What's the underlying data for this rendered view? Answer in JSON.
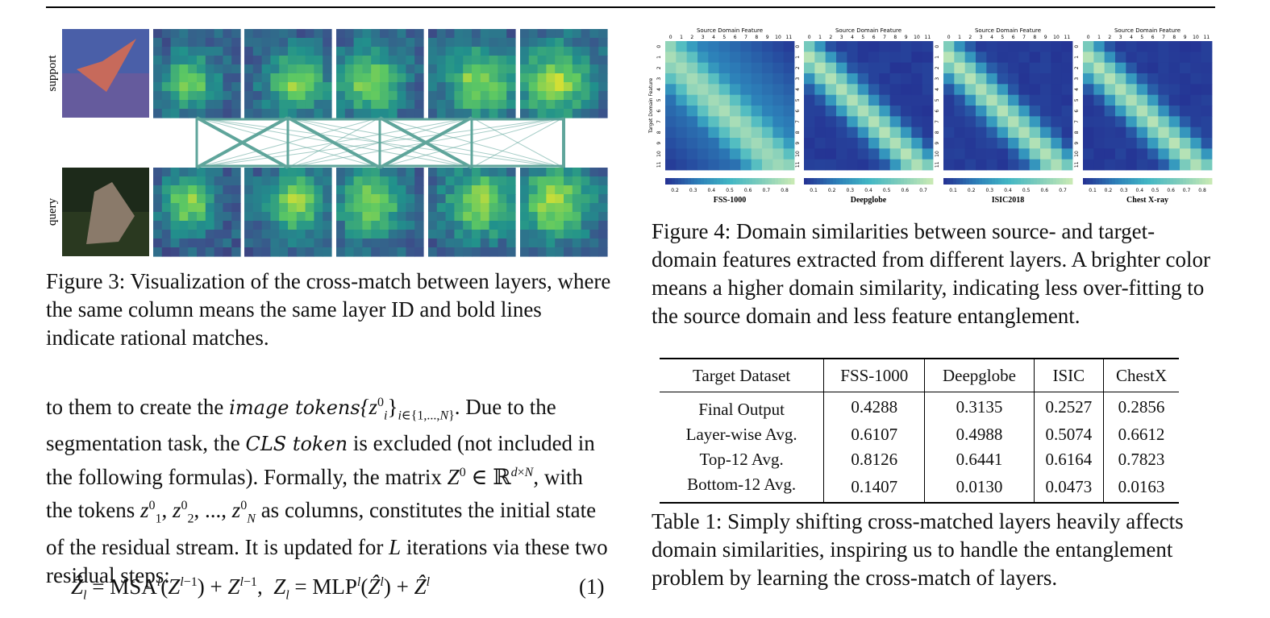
{
  "figure3": {
    "row_labels": [
      "support",
      "query"
    ],
    "caption": "Figure 3: Visualization of the cross-match between layers, where the same column means the same layer ID and bold lines indicate rational matches.",
    "line_color": "#5fa59b"
  },
  "figure4": {
    "axis_top_label": "Source Domain Feature",
    "axis_left_label": "Target Domain Feature",
    "tick_labels": [
      "0",
      "1",
      "2",
      "3",
      "4",
      "5",
      "6",
      "7",
      "8",
      "9",
      "10",
      "11"
    ],
    "caption": "Figure 4: Domain similarities between source- and target-domain features extracted from different layers. A brighter color means a higher domain similarity, indicating less over-fitting to the source domain and less feature entanglement.",
    "panels": [
      {
        "name": "FSS-1000",
        "colorbar_ticks": [
          "0.2",
          "0.3",
          "0.4",
          "0.5",
          "0.6",
          "0.7",
          "0.8"
        ]
      },
      {
        "name": "Deepglobe",
        "colorbar_ticks": [
          "0.1",
          "0.2",
          "0.3",
          "0.4",
          "0.5",
          "0.6",
          "0.7"
        ]
      },
      {
        "name": "ISIC2018",
        "colorbar_ticks": [
          "0.1",
          "0.2",
          "0.3",
          "0.4",
          "0.5",
          "0.6",
          "0.7"
        ]
      },
      {
        "name": "Chest X-ray",
        "colorbar_ticks": [
          "0.1",
          "0.2",
          "0.3",
          "0.4",
          "0.5",
          "0.6",
          "0.7",
          "0.8"
        ]
      }
    ]
  },
  "table1": {
    "headers": [
      "Target Dataset",
      "FSS-1000",
      "Deepglobe",
      "ISIC",
      "ChestX"
    ],
    "rows": [
      [
        "Final Output",
        "0.4288",
        "0.3135",
        "0.2527",
        "0.2856"
      ],
      [
        "Layer-wise Avg.",
        "0.6107",
        "0.4988",
        "0.5074",
        "0.6612"
      ],
      [
        "Top-12 Avg.",
        "0.8126",
        "0.6441",
        "0.6164",
        "0.7823"
      ],
      [
        "Bottom-12 Avg.",
        "0.1407",
        "0.0130",
        "0.0473",
        "0.0163"
      ]
    ],
    "caption": "Table 1: Simply shifting cross-matched layers heavily affects domain similarities, inspiring us to handle the entanglement problem by learning the cross-match of layers."
  },
  "body": {
    "p1_a": "to them to create the ",
    "p1_b": "image tokens",
    "p1_c": "{z",
    "p1_d": "}",
    "p1_e": ". Due to the segmentation task, the ",
    "p1_f": "CLS token",
    "p1_g": " is excluded (not included in the following formulas). Formally, the matrix ",
    "p1_h": " with the tokens ",
    "p1_i": " as columns, constitutes the initial state of the residual stream. It is updated for ",
    "p1_j": "L",
    "p1_k": " iterations via these two residual steps:",
    "eq_number": "(1)"
  }
}
